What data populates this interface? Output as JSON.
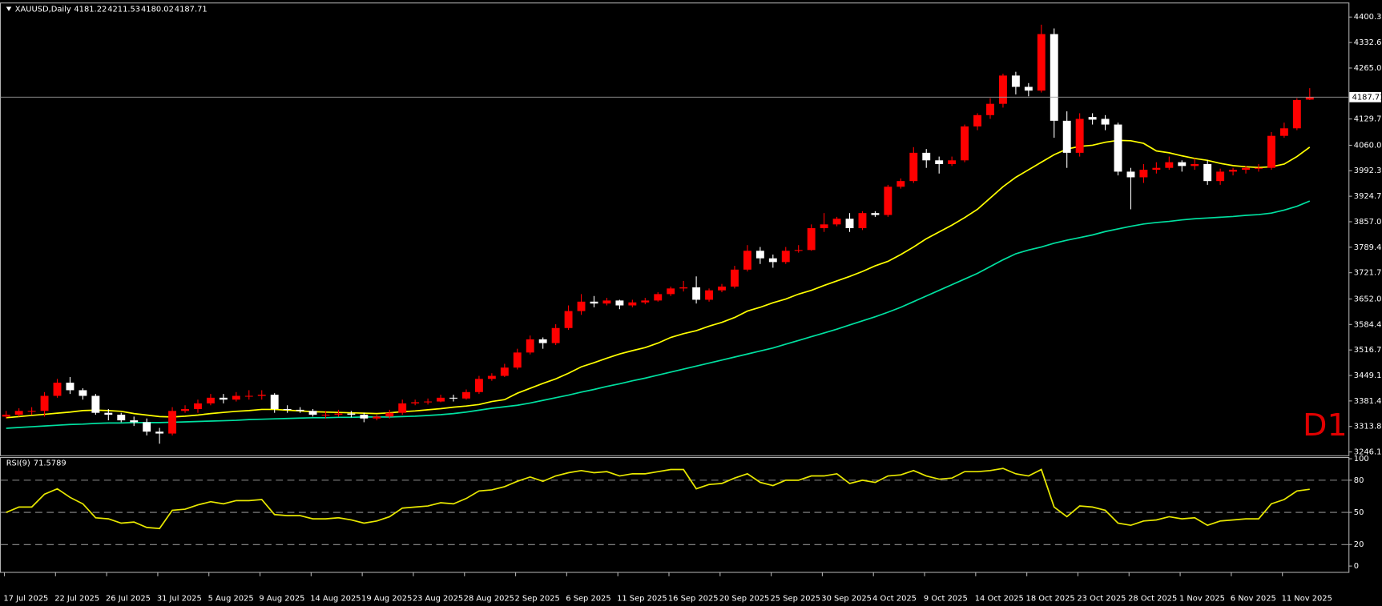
{
  "chart_data": [
    {
      "type": "candlestick",
      "symbol": "XAUUSD,Daily",
      "timeframe_label": "D1",
      "up_color": "#ff0000",
      "down_color": "#ffffff",
      "categories": [
        "17 Jul 2025",
        null,
        null,
        null,
        "22 Jul 2025",
        null,
        null,
        null,
        "26 Jul 2025",
        null,
        null,
        null,
        "31 Jul 2025",
        null,
        null,
        null,
        "5 Aug 2025",
        null,
        null,
        null,
        "9 Aug 2025",
        null,
        null,
        null,
        "14 Aug 2025",
        null,
        null,
        null,
        "19 Aug 2025",
        null,
        null,
        null,
        "23 Aug 2025",
        null,
        null,
        null,
        "28 Aug 2025",
        null,
        null,
        null,
        "2 Sep 2025",
        null,
        null,
        null,
        "6 Sep 2025",
        null,
        null,
        null,
        "11 Sep 2025",
        null,
        null,
        null,
        "16 Sep 2025",
        null,
        null,
        null,
        "20 Sep 2025",
        null,
        null,
        null,
        "25 Sep 2025",
        null,
        null,
        null,
        "30 Sep 2025",
        null,
        null,
        null,
        "4 Oct 2025",
        null,
        null,
        null,
        "9 Oct 2025",
        null,
        null,
        null,
        "14 Oct 2025",
        null,
        null,
        null,
        "18 Oct 2025",
        null,
        null,
        null,
        "23 Oct 2025",
        null,
        null,
        null,
        "28 Oct 2025",
        null,
        null,
        null,
        "1 Nov 2025",
        null,
        null,
        null,
        "6 Nov 2025",
        null,
        null,
        null,
        "11 Nov 2025",
        null,
        null
      ],
      "open": [
        3340,
        3345,
        3355,
        3355,
        3395,
        3430,
        3410,
        3395,
        3350,
        3345,
        3330,
        3325,
        3300,
        3295,
        3355,
        3360,
        3375,
        3390,
        3385,
        3395,
        3395,
        3398,
        3360,
        3358,
        3355,
        3345,
        3345,
        3348,
        3345,
        3335,
        3340,
        3350,
        3375,
        3378,
        3380,
        3390,
        3388,
        3405,
        3440,
        3448,
        3470,
        3510,
        3545,
        3535,
        3575,
        3620,
        3645,
        3640,
        3648,
        3635,
        3643,
        3648,
        3665,
        3680,
        3683,
        3650,
        3675,
        3685,
        3730,
        3780,
        3760,
        3750,
        3780,
        3782,
        3840,
        3850,
        3865,
        3840,
        3880,
        3875,
        3950,
        3965,
        4040,
        4020,
        4010,
        4020,
        4110,
        4140,
        4170,
        4245,
        4215,
        4205,
        4355,
        4125,
        4040,
        4135,
        4130,
        4115,
        3990,
        3975,
        3995,
        4000,
        4015,
        4005,
        4010,
        3965,
        3990,
        3995,
        4000,
        4000,
        4085,
        4105,
        4181.22
      ],
      "high": [
        3355,
        3362,
        3365,
        3405,
        3440,
        3445,
        3415,
        3400,
        3360,
        3350,
        3340,
        3335,
        3310,
        3365,
        3370,
        3385,
        3400,
        3400,
        3405,
        3410,
        3410,
        3402,
        3370,
        3365,
        3360,
        3355,
        3358,
        3355,
        3350,
        3345,
        3358,
        3385,
        3385,
        3388,
        3398,
        3398,
        3412,
        3448,
        3455,
        3480,
        3520,
        3555,
        3550,
        3585,
        3635,
        3665,
        3660,
        3655,
        3650,
        3650,
        3655,
        3670,
        3685,
        3700,
        3712,
        3680,
        3692,
        3740,
        3795,
        3790,
        3770,
        3790,
        3795,
        3850,
        3880,
        3870,
        3880,
        3885,
        3885,
        3955,
        3972,
        4055,
        4050,
        4030,
        4030,
        4115,
        4145,
        4185,
        4250,
        4255,
        4225,
        4380,
        4370,
        4150,
        4145,
        4145,
        4140,
        4120,
        4000,
        4010,
        4015,
        4030,
        4020,
        4025,
        4020,
        3998,
        4000,
        4005,
        4010,
        4095,
        4120,
        4185,
        4211.53
      ],
      "low": [
        3335,
        3340,
        3345,
        3340,
        3390,
        3400,
        3385,
        3345,
        3330,
        3325,
        3315,
        3290,
        3268,
        3290,
        3350,
        3350,
        3370,
        3375,
        3380,
        3385,
        3385,
        3350,
        3350,
        3350,
        3340,
        3335,
        3340,
        3338,
        3325,
        3330,
        3335,
        3345,
        3370,
        3372,
        3378,
        3380,
        3385,
        3400,
        3435,
        3445,
        3465,
        3505,
        3520,
        3530,
        3570,
        3610,
        3630,
        3635,
        3625,
        3630,
        3638,
        3645,
        3660,
        3672,
        3640,
        3645,
        3670,
        3680,
        3725,
        3745,
        3735,
        3745,
        3775,
        3780,
        3830,
        3845,
        3830,
        3835,
        3870,
        3870,
        3945,
        3960,
        4000,
        3985,
        4005,
        4015,
        4100,
        4130,
        4160,
        4195,
        4190,
        4200,
        4080,
        4000,
        4030,
        4115,
        4100,
        3980,
        3890,
        3960,
        3985,
        3995,
        3990,
        3995,
        3955,
        3955,
        3980,
        3985,
        3990,
        3995,
        4080,
        4100,
        4180.02
      ],
      "close": [
        3345,
        3355,
        3355,
        3395,
        3430,
        3410,
        3395,
        3350,
        3345,
        3330,
        3325,
        3300,
        3295,
        3355,
        3360,
        3375,
        3390,
        3385,
        3395,
        3395,
        3398,
        3360,
        3358,
        3355,
        3345,
        3345,
        3348,
        3345,
        3335,
        3340,
        3350,
        3375,
        3378,
        3380,
        3390,
        3388,
        3405,
        3440,
        3448,
        3470,
        3510,
        3545,
        3535,
        3575,
        3620,
        3645,
        3640,
        3648,
        3635,
        3643,
        3648,
        3665,
        3680,
        3683,
        3650,
        3675,
        3685,
        3730,
        3780,
        3760,
        3750,
        3780,
        3782,
        3840,
        3850,
        3865,
        3840,
        3880,
        3875,
        3950,
        3965,
        4040,
        4020,
        4010,
        4020,
        4110,
        4140,
        4170,
        4245,
        4215,
        4205,
        4355,
        4125,
        4040,
        4130,
        4128,
        4115,
        3990,
        3975,
        3995,
        4000,
        4015,
        4005,
        4010,
        3965,
        3990,
        3995,
        4000,
        4000,
        4085,
        4105,
        4180,
        4187.71
      ],
      "overlays": [
        {
          "color": "#ffff00",
          "values": [
            3337,
            3340,
            3343,
            3346,
            3349,
            3352,
            3356,
            3357,
            3356,
            3354,
            3348,
            3344,
            3340,
            3339,
            3341,
            3344,
            3348,
            3351,
            3354,
            3356,
            3359,
            3359,
            3357,
            3355,
            3353,
            3352,
            3351,
            3350,
            3349,
            3348,
            3350,
            3353,
            3355,
            3358,
            3361,
            3365,
            3368,
            3372,
            3380,
            3385,
            3402,
            3415,
            3428,
            3440,
            3455,
            3472,
            3483,
            3495,
            3506,
            3515,
            3523,
            3535,
            3550,
            3560,
            3568,
            3580,
            3590,
            3603,
            3620,
            3630,
            3642,
            3652,
            3665,
            3675,
            3688,
            3700,
            3712,
            3725,
            3740,
            3752,
            3770,
            3790,
            3812,
            3830,
            3848,
            3868,
            3890,
            3920,
            3950,
            3975,
            3995,
            4015,
            4035,
            4050,
            4057,
            4060,
            4068,
            4073,
            4072,
            4065,
            4045,
            4040,
            4032,
            4025,
            4020,
            4012,
            4006,
            4003,
            4001,
            4003,
            4010,
            4030,
            4055
          ]
        },
        {
          "color": "#00e0a0",
          "values": [
            3309,
            3311,
            3313,
            3315,
            3317,
            3319,
            3320,
            3322,
            3323,
            3323,
            3324,
            3324,
            3324,
            3325,
            3326,
            3327,
            3328,
            3329,
            3330,
            3332,
            3333,
            3334,
            3335,
            3336,
            3337,
            3337,
            3338,
            3338,
            3339,
            3339,
            3339,
            3340,
            3341,
            3343,
            3345,
            3348,
            3352,
            3357,
            3362,
            3366,
            3370,
            3376,
            3383,
            3390,
            3397,
            3405,
            3412,
            3420,
            3427,
            3435,
            3442,
            3450,
            3458,
            3466,
            3474,
            3482,
            3490,
            3498,
            3506,
            3514,
            3522,
            3532,
            3542,
            3552,
            3562,
            3572,
            3583,
            3594,
            3605,
            3617,
            3630,
            3645,
            3660,
            3675,
            3690,
            3705,
            3720,
            3738,
            3756,
            3772,
            3782,
            3790,
            3800,
            3808,
            3815,
            3822,
            3831,
            3838,
            3845,
            3851,
            3855,
            3858,
            3862,
            3865,
            3867,
            3869,
            3871,
            3874,
            3876,
            3880,
            3888,
            3898,
            3912
          ]
        }
      ],
      "ylim": [
        3237.1,
        4434.2
      ],
      "yticks": [
        {
          "value": 4400.3,
          "label": "4400.30"
        },
        {
          "value": 4332.65,
          "label": "4332.65"
        },
        {
          "value": 4265,
          "label": "4265.00"
        },
        {
          "value": 4129.7,
          "label": "4129.70"
        },
        {
          "value": 4060,
          "label": "4060.00"
        },
        {
          "value": 3992.35,
          "label": "3992.35"
        },
        {
          "value": 3924.7,
          "label": "3924.70"
        },
        {
          "value": 3857.05,
          "label": "3857.05"
        },
        {
          "value": 3789.4,
          "label": "3789.40"
        },
        {
          "value": 3721.75,
          "label": "3721.75"
        },
        {
          "value": 3652.05,
          "label": "3652.05"
        },
        {
          "value": 3584.4,
          "label": "3584.40"
        },
        {
          "value": 3516.75,
          "label": "3516.75"
        },
        {
          "value": 3449.1,
          "label": "3449.10"
        },
        {
          "value": 3381.45,
          "label": "3381.45"
        },
        {
          "value": 3313.8,
          "label": "3313.80"
        },
        {
          "value": 3246.15,
          "label": "3246.15"
        }
      ]
    },
    {
      "type": "line",
      "title": "RSI(9)",
      "color": "#e8e800",
      "values": [
        50,
        55,
        55,
        67,
        72,
        64,
        58,
        45,
        44,
        40,
        41,
        36,
        35,
        52,
        53,
        57,
        60,
        58,
        61,
        61,
        62,
        48,
        47,
        47,
        44,
        44,
        45,
        43,
        40,
        42,
        46,
        54,
        55,
        56,
        59,
        58,
        63,
        70,
        71,
        74,
        79,
        83,
        79,
        84,
        87,
        89,
        87,
        88,
        84,
        86,
        86,
        88,
        90,
        90,
        72,
        76,
        77,
        82,
        86,
        78,
        75,
        80,
        80,
        84,
        84,
        86,
        77,
        80,
        78,
        84,
        85,
        89,
        84,
        81,
        82,
        88,
        88,
        89,
        91,
        86,
        84,
        90,
        55,
        46,
        56,
        55,
        52,
        40,
        38,
        42,
        43,
        46,
        44,
        45,
        38,
        42,
        43,
        44,
        44,
        58,
        62,
        70,
        71.5789
      ],
      "ylim": [
        -5.5,
        101.6
      ],
      "yticks": [
        100,
        80,
        50,
        20,
        0
      ],
      "levels": [
        80,
        50,
        20
      ]
    }
  ]
}
